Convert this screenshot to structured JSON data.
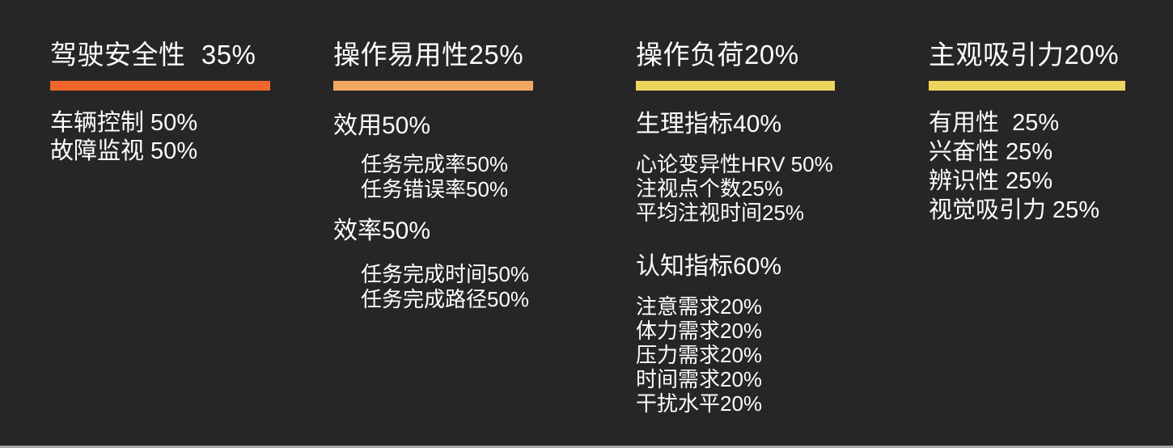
{
  "slide": {
    "background": "#262626",
    "text_color": "#fdfdfd",
    "bottom_edge_color": "#a6a6a6"
  },
  "columns": [
    {
      "title": "驾驶安全性  35%",
      "accent": "#f1662d",
      "groups": [
        {
          "heading": null,
          "indent": false,
          "items": [
            "车辆控制 50%",
            "故障监视 50%"
          ]
        }
      ]
    },
    {
      "title": "操作易用性25%",
      "accent": "#f3a861",
      "groups": [
        {
          "heading": "效用50%",
          "indent": true,
          "items": [
            "任务完成率50%",
            "任务错误率50%"
          ]
        },
        {
          "heading": "效率50%",
          "indent": true,
          "items": [
            "任务完成时间50%",
            "任务完成路径50%"
          ]
        }
      ]
    },
    {
      "title": "操作负荷20%",
      "accent": "#eed45f",
      "groups": [
        {
          "heading": "生理指标40%",
          "indent": false,
          "items": [
            "心论变异性HRV 50%",
            "注视点个数25%",
            "平均注视时间25%"
          ]
        },
        {
          "heading": "认知指标60%",
          "indent": false,
          "items": [
            "注意需求20%",
            "体力需求20%",
            "压力需求20%",
            "时间需求20%",
            "干扰水平20%"
          ]
        }
      ]
    },
    {
      "title": "主观吸引力20%",
      "accent": "#eed45f",
      "groups": [
        {
          "heading": null,
          "indent": false,
          "items": [
            "有用性  25%",
            "兴奋性 25%",
            "辨识性 25%",
            "视觉吸引力 25%"
          ]
        }
      ]
    }
  ]
}
